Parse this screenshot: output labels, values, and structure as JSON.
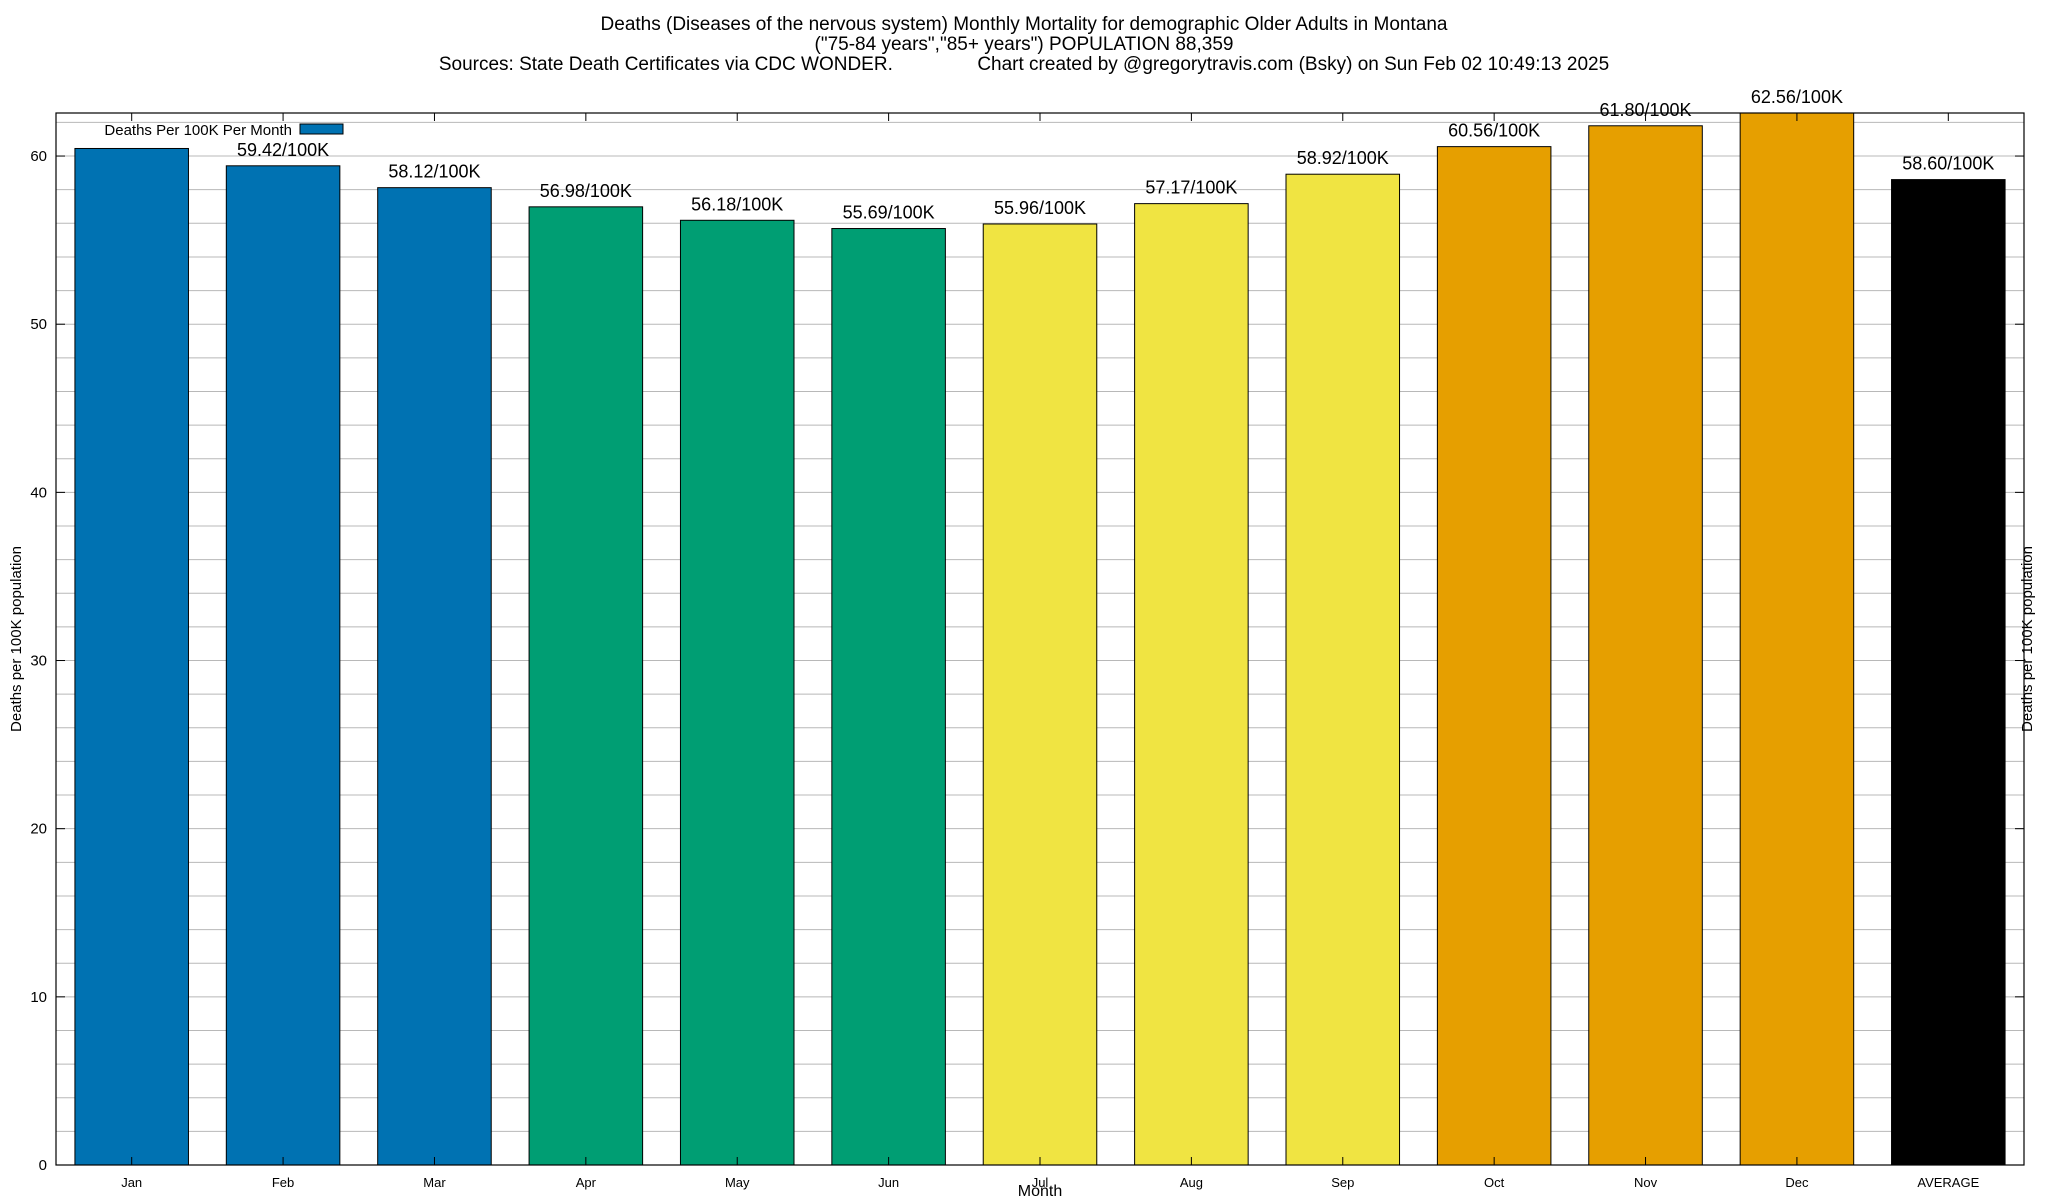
{
  "title_lines": [
    "Deaths (Diseases of the nervous system) Monthly Mortality for demographic Older Adults in Montana",
    "(\"75-84 years\",\"85+ years\") POPULATION 88,359",
    "Sources: State Death Certificates via CDC WONDER.                Chart created by @gregorytravis.com (Bsky) on Sun Feb 02 10:49:13 2025"
  ],
  "chart_data": {
    "type": "bar",
    "categories": [
      "Jan",
      "Feb",
      "Mar",
      "Apr",
      "May",
      "Jun",
      "Jul",
      "Aug",
      "Sep",
      "Oct",
      "Nov",
      "Dec",
      "AVERAGE"
    ],
    "series": [
      {
        "name": "Deaths Per 100K Per Month",
        "values": [
          60.45,
          59.42,
          58.12,
          56.98,
          56.18,
          55.69,
          55.96,
          57.17,
          58.92,
          60.56,
          61.8,
          62.56,
          58.6
        ],
        "data_labels": [
          "",
          "59.42/100K",
          "58.12/100K",
          "56.98/100K",
          "56.18/100K",
          "55.69/100K",
          "55.96/100K",
          "57.17/100K",
          "58.92/100K",
          "60.56/100K",
          "61.80/100K",
          "62.56/100K",
          "58.60/100K"
        ],
        "colors": [
          "#0072b2",
          "#0072b2",
          "#0072b2",
          "#009e73",
          "#009e73",
          "#009e73",
          "#f0e442",
          "#f0e442",
          "#f0e442",
          "#e69f00",
          "#e69f00",
          "#e69f00",
          "#000000"
        ]
      }
    ],
    "xlabel": "Month",
    "ylabel": "Deaths per 100K population",
    "ylabel_right": "Deaths per 100K population",
    "ylim": [
      0,
      62.56
    ],
    "yticks": [
      0,
      10,
      20,
      30,
      40,
      50,
      60
    ],
    "y_minor_step": 2,
    "grid": true,
    "legend": {
      "position": "top-left",
      "entry": "Deaths Per 100K Per Month",
      "color": "#0072b2"
    }
  }
}
